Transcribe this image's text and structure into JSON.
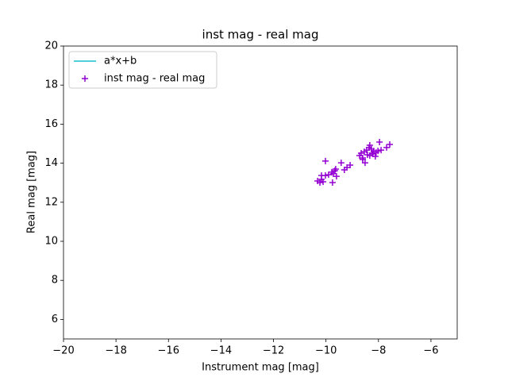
{
  "chart_data": {
    "type": "scatter",
    "title": "inst mag - real mag",
    "xlabel": "Instrument mag [mag]",
    "ylabel": "Real mag [mag]",
    "xlim": [
      -20,
      -5
    ],
    "ylim": [
      5,
      20
    ],
    "xticks": [
      {
        "value": -20,
        "label": "−20"
      },
      {
        "value": -18,
        "label": "−18"
      },
      {
        "value": -16,
        "label": "−16"
      },
      {
        "value": -14,
        "label": "−14"
      },
      {
        "value": -12,
        "label": "−12"
      },
      {
        "value": -10,
        "label": "−10"
      },
      {
        "value": -8,
        "label": "−8"
      },
      {
        "value": -6,
        "label": "−6"
      }
    ],
    "yticks": [
      6,
      8,
      10,
      12,
      14,
      16,
      18,
      20
    ],
    "legend": "upper left",
    "grid": false,
    "series": [
      {
        "name": "a*x+b",
        "type": "line",
        "color": "#17becf",
        "x": [],
        "values": []
      },
      {
        "name": "inst mag - real mag",
        "type": "scatter",
        "color": "#9400d3",
        "x": [
          -10.32,
          -10.23,
          -10.17,
          -10.11,
          -10.17,
          -10.02,
          -10.02,
          -9.9,
          -9.78,
          -9.72,
          -9.63,
          -9.66,
          -9.6,
          -9.75,
          -9.42,
          -9.3,
          -9.2,
          -9.08,
          -8.72,
          -8.66,
          -8.6,
          -8.54,
          -8.51,
          -8.45,
          -8.42,
          -8.36,
          -8.33,
          -8.27,
          -8.24,
          -8.18,
          -8.12,
          -8.09,
          -8.02,
          -7.96,
          -7.9,
          -7.69,
          -7.57,
          -8.33,
          -8.21,
          -8.6
        ],
        "values": [
          13.09,
          13.01,
          13.17,
          13.05,
          13.37,
          13.37,
          14.11,
          13.41,
          13.54,
          13.46,
          13.7,
          13.62,
          13.33,
          13.01,
          14.02,
          13.66,
          13.78,
          13.9,
          14.39,
          14.51,
          14.27,
          14.59,
          14.02,
          14.67,
          14.43,
          14.8,
          14.92,
          14.72,
          14.51,
          14.63,
          14.35,
          14.55,
          14.63,
          15.08,
          14.67,
          14.8,
          14.96,
          14.39,
          14.47,
          14.19
        ]
      }
    ]
  }
}
